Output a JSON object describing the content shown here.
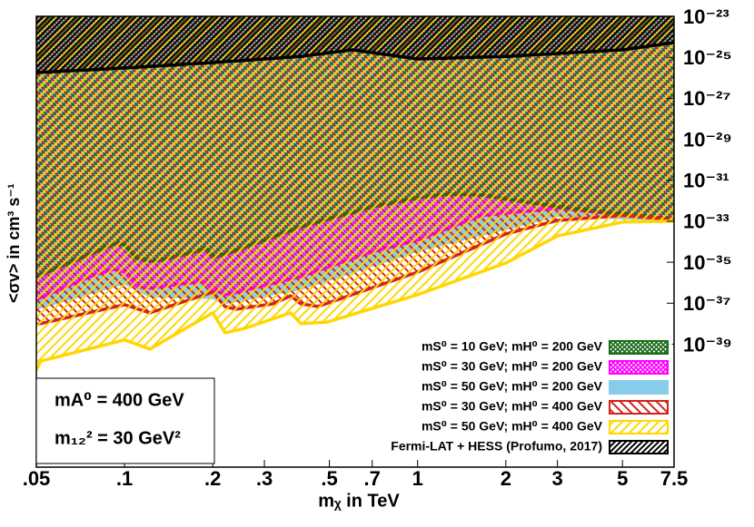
{
  "chart_data": {
    "type": "area",
    "x_label": "mᵪ in TeV",
    "y_label": "<σv> in cm³ s⁻¹",
    "log_x": true,
    "log_y": true,
    "xlim": [
      0.05,
      7.5
    ],
    "ylim": [
      1e-45,
      1e-23
    ],
    "xticks": [
      {
        "value": 0.05,
        "label": ".05"
      },
      {
        "value": 0.1,
        "label": ".1"
      },
      {
        "value": 0.2,
        "label": ".2"
      },
      {
        "value": 0.3,
        "label": ".3"
      },
      {
        "value": 0.5,
        "label": ".5"
      },
      {
        "value": 0.7,
        "label": ".7"
      },
      1,
      2,
      3,
      5,
      7.5
    ],
    "yticks": [
      {
        "value": 1e-23,
        "label": "10⁻²³"
      },
      {
        "value": 1e-25,
        "label": "10⁻²⁵"
      },
      {
        "value": 1e-27,
        "label": "10⁻²⁷"
      },
      {
        "value": 1e-29,
        "label": "10⁻²⁹"
      },
      {
        "value": 1e-31,
        "label": "10⁻³¹"
      },
      {
        "value": 1e-33,
        "label": "10⁻³³"
      },
      {
        "value": 1e-35,
        "label": "10⁻³⁵"
      },
      {
        "value": 1e-37,
        "label": "10⁻³⁷"
      },
      {
        "value": 1e-39,
        "label": "10⁻³⁹"
      }
    ],
    "annotations": [
      "mA⁰ = 400 GeV",
      "m₁₂² = 30 GeV²"
    ],
    "legend_position": "lower right",
    "series": [
      {
        "name": "mS⁰ = 10 GeV; mH⁰ = 200 GeV",
        "color": "#1b6b1b",
        "fill": "crosshatch",
        "x": [
          0.05,
          0.094,
          0.1,
          0.11,
          0.126,
          0.174,
          0.187,
          0.2,
          0.24,
          0.4,
          0.7,
          1,
          1.28,
          1.65,
          3,
          7.5
        ],
        "values": [
          2e-36,
          8.7e-35,
          7.1e-35,
          1.5e-35,
          1.1e-35,
          3.2e-35,
          4.7e-35,
          1.7e-35,
          3.8e-35,
          5.4e-34,
          5.1e-33,
          1.4e-32,
          2.1e-32,
          1.9e-32,
          5.1e-33,
          1.2e-33
        ]
      },
      {
        "name": "mS⁰ = 30 GeV; mH⁰ = 200 GeV",
        "color": "#ff00ff",
        "fill": "crosshatch",
        "x": [
          0.05,
          0.0767,
          0.0917,
          0.1,
          0.11,
          0.122,
          0.187,
          0.2,
          0.224,
          0.4,
          0.7,
          1,
          1.65,
          3,
          7.5
        ],
        "values": [
          1.5e-37,
          2e-36,
          4.5e-36,
          3.3e-36,
          6.5e-37,
          5.3e-37,
          1.2e-36,
          4.4e-37,
          2.6e-37,
          2e-36,
          3.2e-35,
          1.2e-34,
          1.9e-33,
          4.2e-33,
          1.2e-33
        ]
      },
      {
        "name": "mS⁰ = 50 GeV; mH⁰ = 200 GeV",
        "color": "#87cdea",
        "fill": "solid",
        "x": [
          0.05,
          0.1,
          0.122,
          0.2,
          0.224,
          0.4,
          1,
          3,
          7.5
        ],
        "values": [
          5.6e-38,
          9.8e-37,
          2.3e-37,
          1.9e-37,
          1.1e-37,
          5.3e-37,
          3.8e-35,
          1.9e-33,
          1.2e-33
        ]
      },
      {
        "name": "mS⁰ = 30 GeV; mH⁰ = 400 GeV",
        "color": "#d42020",
        "fill": "hatch-back",
        "x": [
          0.05,
          0.1,
          0.122,
          0.2,
          0.22,
          0.24,
          0.32,
          0.369,
          0.4,
          0.457,
          1,
          2,
          3,
          5,
          7.5
        ],
        "values": [
          9.1e-39,
          8.5e-38,
          3.4e-38,
          3.5e-37,
          6.9e-38,
          5.1e-38,
          9.3e-38,
          2.3e-37,
          9.3e-38,
          6.9e-38,
          3.3e-36,
          2.4e-34,
          1.1e-33,
          1.9e-33,
          1.2e-33
        ]
      },
      {
        "name": "mS⁰ = 50 GeV; mH⁰ = 400 GeV",
        "color": "#ffd700",
        "fill": "hatch-forward",
        "x": [
          0.05,
          0.0518,
          0.1,
          0.122,
          0.2,
          0.22,
          0.258,
          0.369,
          0.4,
          0.491,
          1,
          2,
          3,
          5,
          7.5
        ],
        "values": [
          5.5e-41,
          1.5e-40,
          1.6e-39,
          5.8e-40,
          3.4e-38,
          3.6e-39,
          6e-39,
          3.4e-38,
          1e-38,
          1.2e-38,
          2.6e-37,
          9.1e-36,
          1.9e-34,
          9.1e-34,
          1e-33
        ]
      },
      {
        "name": "Fermi-LAT + HESS (Profumo, 2017)",
        "color": "#000000",
        "fill": "dense-hatch",
        "x": [
          0.05,
          0.1,
          0.2,
          0.4,
          0.6,
          0.7,
          1,
          2,
          5,
          7.5
        ],
        "values": [
          1.8e-26,
          3e-26,
          5.5e-26,
          1.1e-25,
          2.3e-25,
          1.7e-25,
          8.3e-26,
          1.1e-25,
          2.3e-25,
          5.2e-25
        ]
      }
    ]
  }
}
